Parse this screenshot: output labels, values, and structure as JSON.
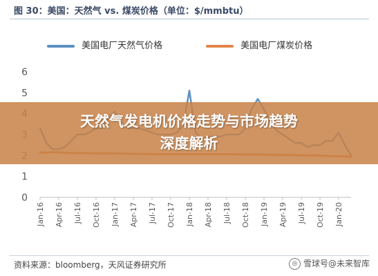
{
  "header": {
    "title": "图 30：美国：天然气 vs. 煤炭价格（单位：$/mmbtu）"
  },
  "overlay": {
    "line1": "天然气发电机价格走势与市场趋势",
    "line2": "深度解析"
  },
  "footer": {
    "source": "资料来源：bloomberg，天风证券研究所",
    "watermark": "雪球号@未来智库"
  },
  "colors": {
    "gas": "#5b8fc1",
    "coal": "#e2844a",
    "axis": "#bfbfbf",
    "overlay": "#c8824a"
  },
  "chart_data": {
    "type": "line",
    "title": "图 30：美国：天然气 vs. 煤炭价格（单位：$/mmbtu）",
    "xlabel": "",
    "ylabel": "",
    "ylim": [
      0,
      6
    ],
    "yticks": [
      "0",
      "1",
      "2",
      "3",
      "4",
      "5",
      "6"
    ],
    "x": [
      "Jan-16",
      "Feb-16",
      "Mar-16",
      "Apr-16",
      "May-16",
      "Jun-16",
      "Jul-16",
      "Aug-16",
      "Sep-16",
      "Oct-16",
      "Nov-16",
      "Dec-16",
      "Jan-17",
      "Feb-17",
      "Mar-17",
      "Apr-17",
      "May-17",
      "Jun-17",
      "Jul-17",
      "Aug-17",
      "Sep-17",
      "Oct-17",
      "Nov-17",
      "Dec-17",
      "Jan-18",
      "Feb-18",
      "Mar-18",
      "Apr-18",
      "May-18",
      "Jun-18",
      "Jul-18",
      "Aug-18",
      "Sep-18",
      "Oct-18",
      "Nov-18",
      "Dec-18",
      "Jan-19",
      "Feb-19",
      "Mar-19",
      "Apr-19",
      "May-19",
      "Jun-19",
      "Jul-19",
      "Aug-19",
      "Sep-19",
      "Oct-19",
      "Nov-19",
      "Dec-19",
      "Jan-20",
      "Feb-20",
      "Mar-20"
    ],
    "xtick_labels": [
      "Jan-16",
      "Apr-16",
      "Jul-16",
      "Oct-16",
      "Jan-17",
      "Apr-17",
      "Jul-17",
      "Oct-17",
      "Jan-18",
      "Apr-18",
      "Jul-18",
      "Oct-18",
      "Jan-19",
      "Apr-19",
      "Jul-19",
      "Oct-19",
      "Jan-20"
    ],
    "series": [
      {
        "name": "美国电厂天然气价格",
        "color": "#5b8fc1",
        "values": [
          3.3,
          2.6,
          2.3,
          2.3,
          2.4,
          2.7,
          3.0,
          3.0,
          3.1,
          3.3,
          3.3,
          3.8,
          4.1,
          3.6,
          3.3,
          3.3,
          3.3,
          3.2,
          3.1,
          3.0,
          3.0,
          3.0,
          3.1,
          3.4,
          5.1,
          3.1,
          2.8,
          2.9,
          2.9,
          2.9,
          3.0,
          3.0,
          3.0,
          3.3,
          4.2,
          4.7,
          4.2,
          3.6,
          3.2,
          3.0,
          2.8,
          2.6,
          2.6,
          2.4,
          2.5,
          2.5,
          2.7,
          2.7,
          3.1,
          2.5,
          2.0
        ]
      },
      {
        "name": "美国电厂煤炭价格",
        "color": "#e2844a",
        "values": [
          2.15,
          2.14,
          2.16,
          2.15,
          2.13,
          2.12,
          2.12,
          2.12,
          2.11,
          2.1,
          2.1,
          2.1,
          2.09,
          2.09,
          2.08,
          2.08,
          2.07,
          2.07,
          2.07,
          2.06,
          2.06,
          2.06,
          2.06,
          2.06,
          2.06,
          2.06,
          2.06,
          2.06,
          2.06,
          2.06,
          2.06,
          2.06,
          2.05,
          2.05,
          2.05,
          2.05,
          2.04,
          2.04,
          2.03,
          2.03,
          2.02,
          2.02,
          2.01,
          2.0,
          2.0,
          1.99,
          1.98,
          1.97,
          1.96,
          1.95,
          1.94
        ]
      }
    ],
    "legend_position": "top",
    "grid": false
  }
}
